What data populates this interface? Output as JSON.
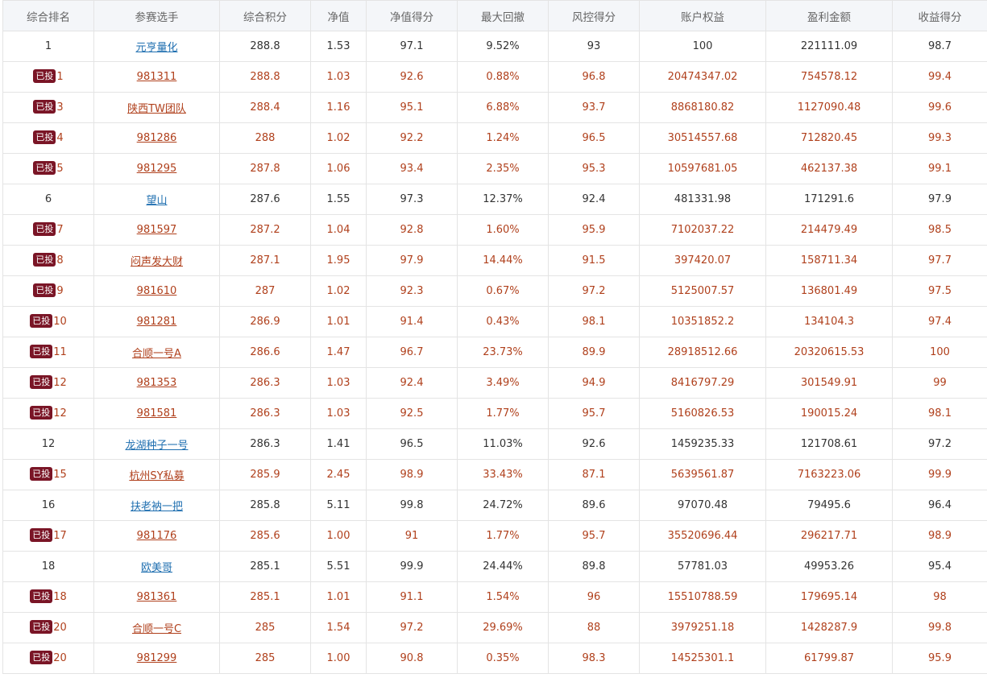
{
  "columns": [
    "综合排名",
    "参赛选手",
    "综合积分",
    "净值",
    "净值得分",
    "最大回撤",
    "风控得分",
    "账户权益",
    "盈利金额",
    "收益得分"
  ],
  "badge_label": "已投",
  "rows": [
    {
      "invested": false,
      "rank": "1",
      "name": "元亨量化",
      "score": "288.8",
      "nav": "1.53",
      "nav_score": "97.1",
      "max_dd": "9.52%",
      "risk": "93",
      "equity": "100",
      "profit": "221111.09",
      "ret": "98.7"
    },
    {
      "invested": true,
      "rank": "1",
      "name": "981311",
      "score": "288.8",
      "nav": "1.03",
      "nav_score": "92.6",
      "max_dd": "0.88%",
      "risk": "96.8",
      "equity": "20474347.02",
      "profit": "754578.12",
      "ret": "99.4"
    },
    {
      "invested": true,
      "rank": "3",
      "name": "陕西TW团队",
      "score": "288.4",
      "nav": "1.16",
      "nav_score": "95.1",
      "max_dd": "6.88%",
      "risk": "93.7",
      "equity": "8868180.82",
      "profit": "1127090.48",
      "ret": "99.6"
    },
    {
      "invested": true,
      "rank": "4",
      "name": "981286",
      "score": "288",
      "nav": "1.02",
      "nav_score": "92.2",
      "max_dd": "1.24%",
      "risk": "96.5",
      "equity": "30514557.68",
      "profit": "712820.45",
      "ret": "99.3"
    },
    {
      "invested": true,
      "rank": "5",
      "name": "981295",
      "score": "287.8",
      "nav": "1.06",
      "nav_score": "93.4",
      "max_dd": "2.35%",
      "risk": "95.3",
      "equity": "10597681.05",
      "profit": "462137.38",
      "ret": "99.1"
    },
    {
      "invested": false,
      "rank": "6",
      "name": "望山",
      "score": "287.6",
      "nav": "1.55",
      "nav_score": "97.3",
      "max_dd": "12.37%",
      "risk": "92.4",
      "equity": "481331.98",
      "profit": "171291.6",
      "ret": "97.9"
    },
    {
      "invested": true,
      "rank": "7",
      "name": "981597",
      "score": "287.2",
      "nav": "1.04",
      "nav_score": "92.8",
      "max_dd": "1.60%",
      "risk": "95.9",
      "equity": "7102037.22",
      "profit": "214479.49",
      "ret": "98.5"
    },
    {
      "invested": true,
      "rank": "8",
      "name": "闷声发大财",
      "score": "287.1",
      "nav": "1.95",
      "nav_score": "97.9",
      "max_dd": "14.44%",
      "risk": "91.5",
      "equity": "397420.07",
      "profit": "158711.34",
      "ret": "97.7"
    },
    {
      "invested": true,
      "rank": "9",
      "name": "981610",
      "score": "287",
      "nav": "1.02",
      "nav_score": "92.3",
      "max_dd": "0.67%",
      "risk": "97.2",
      "equity": "5125007.57",
      "profit": "136801.49",
      "ret": "97.5"
    },
    {
      "invested": true,
      "rank": "10",
      "name": "981281",
      "score": "286.9",
      "nav": "1.01",
      "nav_score": "91.4",
      "max_dd": "0.43%",
      "risk": "98.1",
      "equity": "10351852.2",
      "profit": "134104.3",
      "ret": "97.4"
    },
    {
      "invested": true,
      "rank": "11",
      "name": "合顺一号A",
      "score": "286.6",
      "nav": "1.47",
      "nav_score": "96.7",
      "max_dd": "23.73%",
      "risk": "89.9",
      "equity": "28918512.66",
      "profit": "20320615.53",
      "ret": "100"
    },
    {
      "invested": true,
      "rank": "12",
      "name": "981353",
      "score": "286.3",
      "nav": "1.03",
      "nav_score": "92.4",
      "max_dd": "3.49%",
      "risk": "94.9",
      "equity": "8416797.29",
      "profit": "301549.91",
      "ret": "99"
    },
    {
      "invested": true,
      "rank": "12",
      "name": "981581",
      "score": "286.3",
      "nav": "1.03",
      "nav_score": "92.5",
      "max_dd": "1.77%",
      "risk": "95.7",
      "equity": "5160826.53",
      "profit": "190015.24",
      "ret": "98.1"
    },
    {
      "invested": false,
      "rank": "12",
      "name": "龙湖种子一号",
      "score": "286.3",
      "nav": "1.41",
      "nav_score": "96.5",
      "max_dd": "11.03%",
      "risk": "92.6",
      "equity": "1459235.33",
      "profit": "121708.61",
      "ret": "97.2"
    },
    {
      "invested": true,
      "rank": "15",
      "name": "杭州SY私募",
      "score": "285.9",
      "nav": "2.45",
      "nav_score": "98.9",
      "max_dd": "33.43%",
      "risk": "87.1",
      "equity": "5639561.87",
      "profit": "7163223.06",
      "ret": "99.9"
    },
    {
      "invested": false,
      "rank": "16",
      "name": "扶老衲一把",
      "score": "285.8",
      "nav": "5.11",
      "nav_score": "99.8",
      "max_dd": "24.72%",
      "risk": "89.6",
      "equity": "97070.48",
      "profit": "79495.6",
      "ret": "96.4"
    },
    {
      "invested": true,
      "rank": "17",
      "name": "981176",
      "score": "285.6",
      "nav": "1.00",
      "nav_score": "91",
      "max_dd": "1.77%",
      "risk": "95.7",
      "equity": "35520696.44",
      "profit": "296217.71",
      "ret": "98.9"
    },
    {
      "invested": false,
      "rank": "18",
      "name": "欧美哥",
      "score": "285.1",
      "nav": "5.51",
      "nav_score": "99.9",
      "max_dd": "24.44%",
      "risk": "89.8",
      "equity": "57781.03",
      "profit": "49953.26",
      "ret": "95.4"
    },
    {
      "invested": true,
      "rank": "18",
      "name": "981361",
      "score": "285.1",
      "nav": "1.01",
      "nav_score": "91.1",
      "max_dd": "1.54%",
      "risk": "96",
      "equity": "15510788.59",
      "profit": "179695.14",
      "ret": "98"
    },
    {
      "invested": true,
      "rank": "20",
      "name": "合顺一号C",
      "score": "285",
      "nav": "1.54",
      "nav_score": "97.2",
      "max_dd": "29.69%",
      "risk": "88",
      "equity": "3979251.18",
      "profit": "1428287.9",
      "ret": "99.8"
    },
    {
      "invested": true,
      "rank": "20",
      "name": "981299",
      "score": "285",
      "nav": "1.00",
      "nav_score": "90.8",
      "max_dd": "0.35%",
      "risk": "98.3",
      "equity": "14525301.1",
      "profit": "61799.87",
      "ret": "95.9"
    }
  ],
  "colors": {
    "header_bg": "#f4f6f9",
    "header_text": "#666666",
    "normal_text": "#333333",
    "normal_link": "#1f6fb0",
    "invested_text": "#b0401c",
    "badge_bg": "#7a1526",
    "border": "#e4e4e4"
  }
}
